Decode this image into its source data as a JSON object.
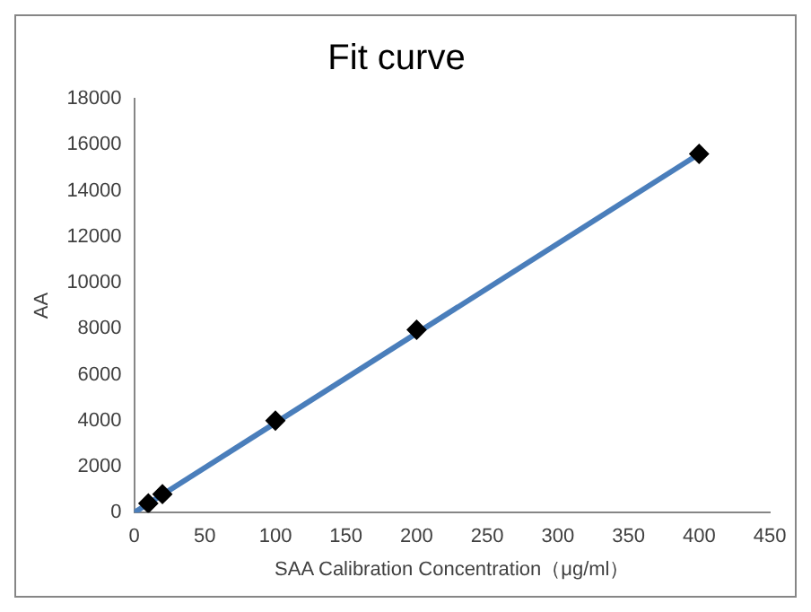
{
  "chart_data": {
    "type": "scatter",
    "title": "Fit curve",
    "xlabel": "SAA Calibration Concentration（μg/ml）",
    "ylabel": "AA",
    "xlim": [
      0,
      450
    ],
    "xticks": [
      0,
      50,
      100,
      150,
      200,
      250,
      300,
      350,
      400,
      450
    ],
    "ylim": [
      0,
      18000
    ],
    "yticks": [
      0,
      2000,
      4000,
      6000,
      8000,
      10000,
      12000,
      14000,
      16000,
      18000
    ],
    "grid": false,
    "legend": false,
    "series": [
      {
        "color": "#000000",
        "marker": "diamond",
        "x": [
          10,
          20,
          100,
          200,
          400
        ],
        "values": [
          400,
          800,
          4000,
          7950,
          15600
        ]
      },
      {
        "type": "line",
        "color": "#4a7ebb",
        "marker": "none",
        "line_style": "solid",
        "x": [
          0,
          400
        ],
        "values": [
          0,
          15600
        ]
      }
    ]
  }
}
